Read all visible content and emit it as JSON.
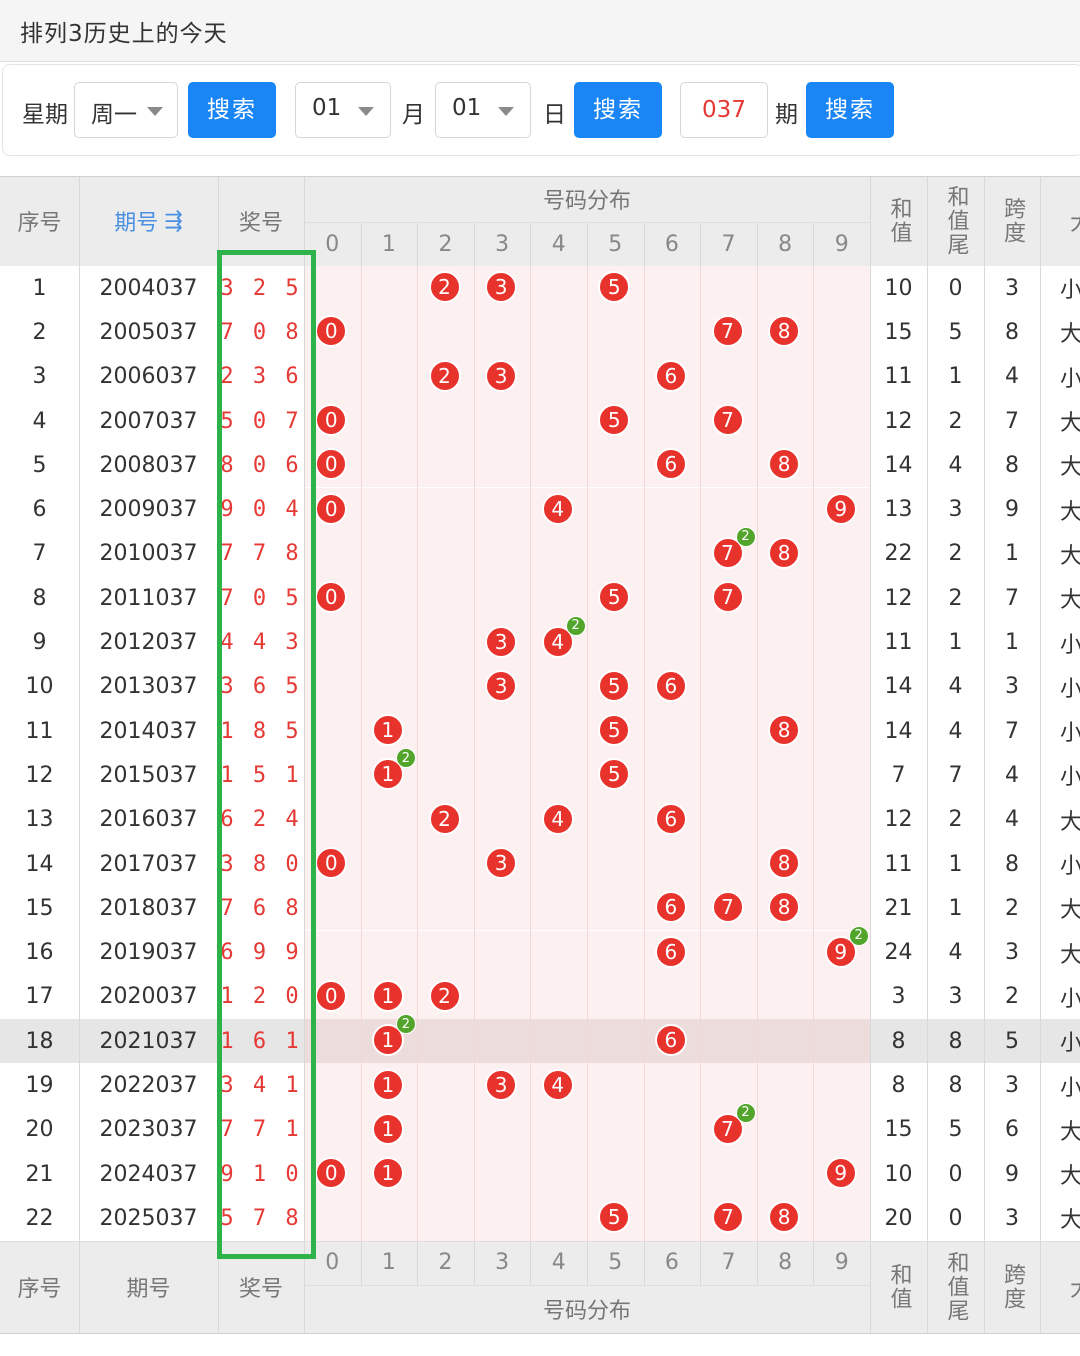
{
  "title": "排列3历史上的今天",
  "search": {
    "week_label": "星期",
    "week_value": "周一",
    "month_value": "01",
    "month_label": "月",
    "day_value": "01",
    "day_label": "日",
    "period_value": "037",
    "period_label": "期",
    "search_label": "搜索"
  },
  "table": {
    "headers": {
      "seq": "序号",
      "period": "期号",
      "prize": "奖号",
      "dist": "号码分布",
      "sum": "和值",
      "sum_tail": "和值尾",
      "span": "跨度",
      "extra": "大"
    },
    "digits": [
      "0",
      "1",
      "2",
      "3",
      "4",
      "5",
      "6",
      "7",
      "8",
      "9"
    ],
    "highlight_row": 18,
    "rows": [
      {
        "seq": "1",
        "period": "2004037",
        "prize": "3 2 5",
        "sum": "10",
        "tail": "0",
        "span": "3",
        "size": "小"
      },
      {
        "seq": "2",
        "period": "2005037",
        "prize": "7 0 8",
        "sum": "15",
        "tail": "5",
        "span": "8",
        "size": "大"
      },
      {
        "seq": "3",
        "period": "2006037",
        "prize": "2 3 6",
        "sum": "11",
        "tail": "1",
        "span": "4",
        "size": "小"
      },
      {
        "seq": "4",
        "period": "2007037",
        "prize": "5 0 7",
        "sum": "12",
        "tail": "2",
        "span": "7",
        "size": "大"
      },
      {
        "seq": "5",
        "period": "2008037",
        "prize": "8 0 6",
        "sum": "14",
        "tail": "4",
        "span": "8",
        "size": "大"
      },
      {
        "seq": "6",
        "period": "2009037",
        "prize": "9 0 4",
        "sum": "13",
        "tail": "3",
        "span": "9",
        "size": "大"
      },
      {
        "seq": "7",
        "period": "2010037",
        "prize": "7 7 8",
        "sum": "22",
        "tail": "2",
        "span": "1",
        "size": "大"
      },
      {
        "seq": "8",
        "period": "2011037",
        "prize": "7 0 5",
        "sum": "12",
        "tail": "2",
        "span": "7",
        "size": "大"
      },
      {
        "seq": "9",
        "period": "2012037",
        "prize": "4 4 3",
        "sum": "11",
        "tail": "1",
        "span": "1",
        "size": "小"
      },
      {
        "seq": "10",
        "period": "2013037",
        "prize": "3 6 5",
        "sum": "14",
        "tail": "4",
        "span": "3",
        "size": "小"
      },
      {
        "seq": "11",
        "period": "2014037",
        "prize": "1 8 5",
        "sum": "14",
        "tail": "4",
        "span": "7",
        "size": "小"
      },
      {
        "seq": "12",
        "period": "2015037",
        "prize": "1 5 1",
        "sum": "7",
        "tail": "7",
        "span": "4",
        "size": "小"
      },
      {
        "seq": "13",
        "period": "2016037",
        "prize": "6 2 4",
        "sum": "12",
        "tail": "2",
        "span": "4",
        "size": "大"
      },
      {
        "seq": "14",
        "period": "2017037",
        "prize": "3 8 0",
        "sum": "11",
        "tail": "1",
        "span": "8",
        "size": "小"
      },
      {
        "seq": "15",
        "period": "2018037",
        "prize": "7 6 8",
        "sum": "21",
        "tail": "1",
        "span": "2",
        "size": "大"
      },
      {
        "seq": "16",
        "period": "2019037",
        "prize": "6 9 9",
        "sum": "24",
        "tail": "4",
        "span": "3",
        "size": "大"
      },
      {
        "seq": "17",
        "period": "2020037",
        "prize": "1 2 0",
        "sum": "3",
        "tail": "3",
        "span": "2",
        "size": "小"
      },
      {
        "seq": "18",
        "period": "2021037",
        "prize": "1 6 1",
        "sum": "8",
        "tail": "8",
        "span": "5",
        "size": "小"
      },
      {
        "seq": "19",
        "period": "2022037",
        "prize": "3 4 1",
        "sum": "8",
        "tail": "8",
        "span": "3",
        "size": "小"
      },
      {
        "seq": "20",
        "period": "2023037",
        "prize": "7 7 1",
        "sum": "15",
        "tail": "5",
        "span": "6",
        "size": "大"
      },
      {
        "seq": "21",
        "period": "2024037",
        "prize": "9 1 0",
        "sum": "10",
        "tail": "0",
        "span": "9",
        "size": "大"
      },
      {
        "seq": "22",
        "period": "2025037",
        "prize": "5 7 8",
        "sum": "20",
        "tail": "0",
        "span": "3",
        "size": "大"
      }
    ]
  },
  "colors": {
    "ball": "#e8322c",
    "repeat_badge": "#52a52a",
    "button": "#1a86f5",
    "highlight_box": "#2db34a",
    "prize_text": "#e53935"
  }
}
